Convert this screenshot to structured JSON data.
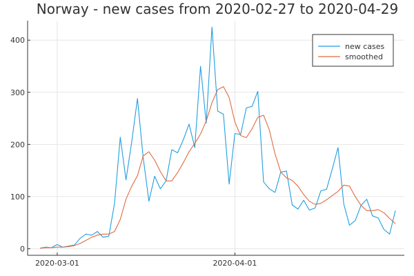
{
  "chart_data": {
    "type": "line",
    "title": "Norway - new cases from 2020-02-27 to 2020-04-29",
    "xlabel": "",
    "ylabel": "",
    "x_start": "2020-02-27",
    "x_end": "2020-04-29",
    "x_ticks": [
      {
        "date": "2020-03-01",
        "label": "2020-03-01"
      },
      {
        "date": "2020-04-01",
        "label": "2020-04-01"
      }
    ],
    "y_ticks": [
      0,
      100,
      200,
      300,
      400
    ],
    "ylim": [
      -10,
      440
    ],
    "grid": true,
    "legend_position": "top-right",
    "colors": {
      "new_cases": "#1f9ee0",
      "smoothed": "#e26a3f"
    },
    "series": [
      {
        "name": "new cases",
        "color": "#1f9ee0",
        "values": [
          1,
          3,
          2,
          8,
          3,
          5,
          7,
          20,
          28,
          26,
          33,
          22,
          24,
          87,
          214,
          132,
          205,
          288,
          175,
          91,
          139,
          115,
          130,
          190,
          184,
          209,
          239,
          194,
          350,
          241,
          425,
          264,
          258,
          124,
          221,
          219,
          270,
          273,
          302,
          128,
          115,
          108,
          147,
          149,
          84,
          76,
          93,
          74,
          78,
          111,
          114,
          153,
          194,
          86,
          45,
          54,
          83,
          95,
          63,
          59,
          37,
          28,
          73
        ]
      },
      {
        "name": "smoothed",
        "color": "#e26a3f",
        "values": [
          1,
          2,
          2,
          3,
          3,
          4,
          6,
          10,
          16,
          22,
          26,
          28,
          28,
          33,
          56,
          95,
          120,
          140,
          178,
          186,
          170,
          148,
          130,
          130,
          146,
          165,
          186,
          202,
          220,
          245,
          280,
          305,
          311,
          290,
          243,
          217,
          213,
          230,
          252,
          256,
          228,
          182,
          147,
          136,
          131,
          120,
          104,
          91,
          85,
          87,
          94,
          102,
          110,
          122,
          120,
          100,
          83,
          73,
          73,
          75,
          69,
          58,
          48
        ]
      }
    ]
  }
}
